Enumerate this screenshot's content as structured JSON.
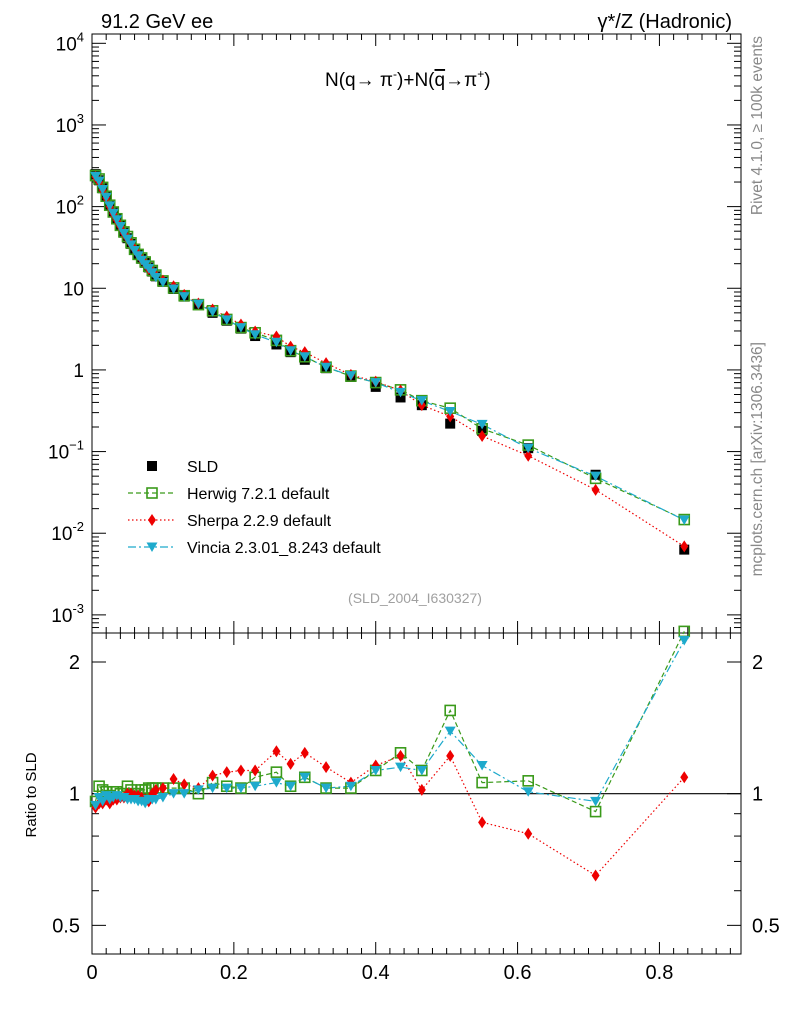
{
  "header": {
    "left": "91.2 GeV ee",
    "right": "γ*/Z (Hadronic)"
  },
  "side_labels": {
    "rivet": "Rivet 4.1.0, ≥ 100k events",
    "mcplots": "mcplots.cern.ch [arXiv:1306.3436]"
  },
  "analysis_id": "(SLD_2004_I630327)",
  "plot_title": {
    "n1": "N(q→ π",
    "sup1": "-",
    "mid": ")+N(",
    "qbar": "q",
    "arrow": "→π",
    "sup2": "+",
    "end": ")"
  },
  "colors": {
    "data": "#000000",
    "herwig": "#3a9a1a",
    "sherpa": "#ee0000",
    "vincia": "#1eaacc"
  },
  "chart_data": [
    {
      "type": "scatter",
      "scale": "log",
      "xlim": [
        0,
        0.915
      ],
      "ylim": [
        0.0006,
        13000
      ],
      "y_ticks": [
        {
          "base": "10",
          "exp": "-3"
        },
        {
          "base": "10",
          "exp": "-2"
        },
        {
          "base": "10",
          "exp": "−1"
        },
        {
          "base": "",
          "exp": "",
          "text": "1"
        },
        {
          "base": "",
          "exp": "",
          "text": "10"
        },
        {
          "base": "10",
          "exp": "2"
        },
        {
          "base": "10",
          "exp": "3"
        },
        {
          "base": "10",
          "exp": "4"
        }
      ],
      "x": [
        0.005,
        0.01,
        0.015,
        0.02,
        0.025,
        0.03,
        0.035,
        0.04,
        0.045,
        0.05,
        0.055,
        0.06,
        0.065,
        0.07,
        0.075,
        0.08,
        0.085,
        0.09,
        0.1,
        0.115,
        0.13,
        0.15,
        0.17,
        0.19,
        0.21,
        0.23,
        0.26,
        0.28,
        0.3,
        0.33,
        0.365,
        0.4,
        0.435,
        0.465,
        0.505,
        0.55,
        0.615,
        0.71,
        0.835
      ],
      "series": [
        {
          "name": "SLD",
          "key": "data",
          "marker": "square",
          "values": [
            250,
            210,
            168,
            132,
            105,
            85,
            70,
            58,
            48,
            41,
            35,
            30,
            26,
            23,
            20.5,
            18,
            16,
            14,
            12,
            9.8,
            7.9,
            6.3,
            5.0,
            4.0,
            3.2,
            2.6,
            2.05,
            1.65,
            1.33,
            1.05,
            0.82,
            0.62,
            0.46,
            0.37,
            0.22,
            0.18,
            0.11,
            0.052,
            0.0063
          ]
        },
        {
          "name": "Herwig 7.2.1 default",
          "key": "herwig",
          "marker": "open-square",
          "values": [
            240,
            218,
            172,
            134,
            104,
            86,
            71,
            59,
            49,
            43,
            36,
            30,
            26,
            23.5,
            21,
            18.6,
            16.5,
            14.5,
            12.3,
            10.1,
            8.1,
            6.3,
            5.3,
            4.15,
            3.3,
            2.85,
            2.3,
            1.72,
            1.45,
            1.08,
            0.84,
            0.7,
            0.57,
            0.42,
            0.34,
            0.19,
            0.12,
            0.047,
            0.0147
          ]
        },
        {
          "name": "Sherpa 2.2.9 default",
          "key": "sherpa",
          "marker": "diamond",
          "values": [
            232,
            200,
            160,
            128,
            100,
            82,
            68,
            57,
            47,
            41,
            35,
            30,
            26,
            22.5,
            20,
            17.3,
            16,
            14.3,
            12.4,
            10.6,
            8.3,
            6.5,
            5.5,
            4.5,
            3.6,
            2.95,
            2.57,
            1.93,
            1.65,
            1.21,
            0.87,
            0.72,
            0.56,
            0.37,
            0.27,
            0.155,
            0.089,
            0.034,
            0.0069
          ]
        },
        {
          "name": "Vincia 2.3.01_8.243 default",
          "key": "vincia",
          "marker": "triangle-down",
          "values": [
            235,
            205,
            162,
            130,
            102,
            83,
            69,
            57,
            47,
            40,
            34,
            29,
            25,
            22,
            19.5,
            17.5,
            15.5,
            13.6,
            11.8,
            9.8,
            7.9,
            6.4,
            5.15,
            4.1,
            3.3,
            2.7,
            2.18,
            1.72,
            1.45,
            1.08,
            0.85,
            0.7,
            0.53,
            0.42,
            0.31,
            0.215,
            0.11,
            0.05,
            0.0145
          ]
        }
      ]
    },
    {
      "type": "scatter",
      "scale": "log",
      "ylabel": "Ratio to SLD",
      "xlim": [
        0,
        0.915
      ],
      "ylim": [
        0.43,
        2.33
      ],
      "reference": 1,
      "x_ticks": [
        "0",
        "0.2",
        "0.4",
        "0.6",
        "0.8"
      ],
      "y_ticks": [
        "0.5",
        "1",
        "2"
      ],
      "x": [
        0.005,
        0.01,
        0.015,
        0.02,
        0.025,
        0.03,
        0.035,
        0.04,
        0.045,
        0.05,
        0.055,
        0.06,
        0.065,
        0.07,
        0.075,
        0.08,
        0.085,
        0.09,
        0.1,
        0.115,
        0.13,
        0.15,
        0.17,
        0.19,
        0.21,
        0.23,
        0.26,
        0.28,
        0.3,
        0.33,
        0.365,
        0.4,
        0.435,
        0.465,
        0.505,
        0.55,
        0.615,
        0.71,
        0.835
      ],
      "series": [
        {
          "name": "Herwig 7.2.1 default",
          "key": "herwig",
          "marker": "open-square",
          "values": [
            0.96,
            1.04,
            1.02,
            1.01,
            0.99,
            1.01,
            1.01,
            1.0,
            1.0,
            1.04,
            1.02,
            1.0,
            1.0,
            1.02,
            1.02,
            1.03,
            1.03,
            1.03,
            1.03,
            1.03,
            1.03,
            1.0,
            1.06,
            1.04,
            1.03,
            1.09,
            1.12,
            1.04,
            1.09,
            1.03,
            1.03,
            1.13,
            1.24,
            1.13,
            1.55,
            1.06,
            1.07,
            0.91,
            2.35
          ]
        },
        {
          "name": "Sherpa 2.2.9 default",
          "key": "sherpa",
          "marker": "diamond",
          "values": [
            0.93,
            0.95,
            0.95,
            0.97,
            0.95,
            0.97,
            0.97,
            0.98,
            0.98,
            1.0,
            1.0,
            0.99,
            0.99,
            0.98,
            0.97,
            0.96,
            1.0,
            1.02,
            1.03,
            1.08,
            1.05,
            1.03,
            1.1,
            1.12,
            1.13,
            1.13,
            1.25,
            1.17,
            1.24,
            1.15,
            1.06,
            1.16,
            1.22,
            1.02,
            1.22,
            0.86,
            0.81,
            0.65,
            1.09
          ]
        },
        {
          "name": "Vincia 2.3.01_8.243 default",
          "key": "vincia",
          "marker": "triangle-down",
          "values": [
            0.94,
            0.98,
            0.96,
            0.99,
            0.97,
            0.98,
            0.99,
            0.98,
            0.98,
            0.97,
            0.97,
            0.97,
            0.96,
            0.96,
            0.95,
            0.97,
            0.97,
            0.97,
            0.98,
            1.0,
            1.0,
            1.02,
            1.03,
            1.03,
            1.03,
            1.04,
            1.06,
            1.04,
            1.09,
            1.03,
            1.04,
            1.13,
            1.15,
            1.13,
            1.39,
            1.16,
            1.01,
            0.96,
            2.24
          ]
        }
      ]
    }
  ],
  "legend": [
    {
      "key": "data",
      "marker": "square",
      "label": "SLD"
    },
    {
      "key": "herwig",
      "marker": "open-square",
      "label": "Herwig 7.2.1 default"
    },
    {
      "key": "sherpa",
      "marker": "diamond",
      "label": "Sherpa 2.2.9 default"
    },
    {
      "key": "vincia",
      "marker": "triangle-down",
      "label": "Vincia 2.3.01_8.243 default"
    }
  ]
}
